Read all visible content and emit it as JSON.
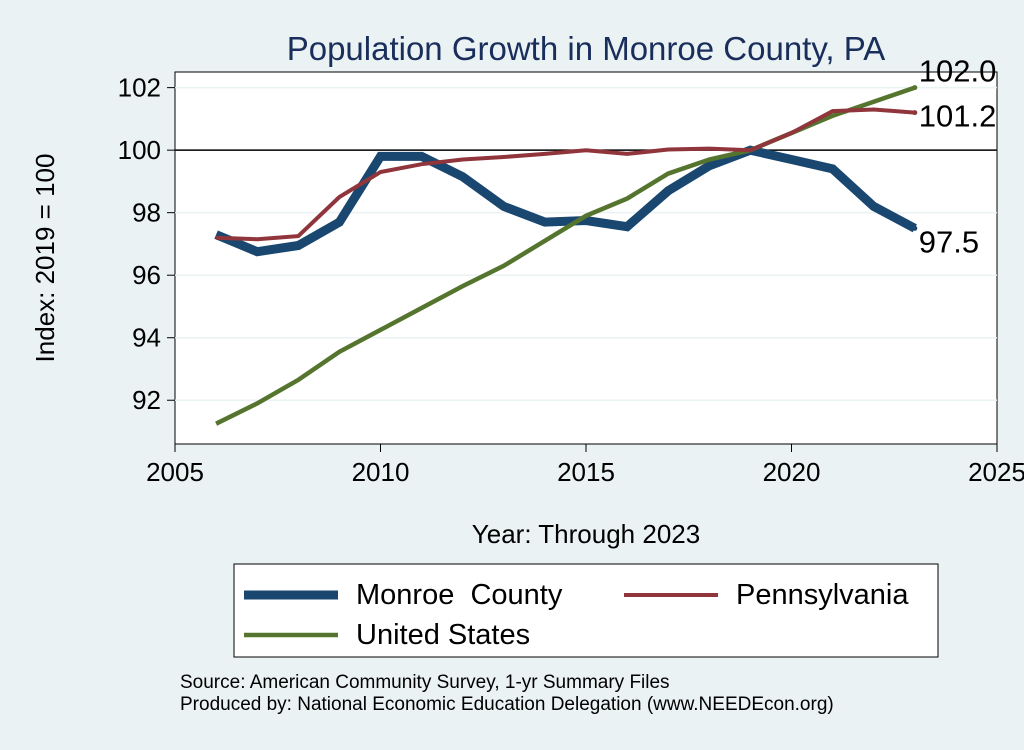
{
  "chart_data": {
    "type": "line",
    "title": "Population Growth in Monroe County, PA",
    "xlabel": "Year: Through 2023",
    "ylabel": "Index: 2019 = 100",
    "xlim": [
      2005,
      2025
    ],
    "ylim": [
      90.6,
      102.5
    ],
    "x_ticks": [
      2005,
      2010,
      2015,
      2020,
      2025
    ],
    "y_ticks": [
      92,
      94,
      96,
      98,
      100,
      102
    ],
    "reference_line": 100,
    "x": [
      2006,
      2007,
      2008,
      2009,
      2010,
      2011,
      2012,
      2013,
      2014,
      2015,
      2016,
      2017,
      2018,
      2019,
      2020,
      2021,
      2022,
      2023
    ],
    "series": [
      {
        "name": "Monroe  County",
        "color": "#1a476f",
        "values": [
          97.3,
          96.75,
          96.95,
          97.7,
          99.8,
          99.8,
          99.15,
          98.2,
          97.7,
          97.75,
          97.55,
          98.7,
          99.5,
          100.0,
          99.7,
          99.4,
          98.2,
          97.5
        ],
        "end_label": "97.5"
      },
      {
        "name": "Pennsylvania",
        "color": "#90353b",
        "values": [
          97.2,
          97.15,
          97.25,
          98.5,
          99.3,
          99.55,
          99.7,
          99.78,
          99.88,
          100.0,
          99.88,
          100.02,
          100.05,
          100.0,
          100.55,
          101.25,
          101.3,
          101.2
        ],
        "end_label": "101.2"
      },
      {
        "name": "United States",
        "color": "#55752f",
        "values": [
          91.25,
          91.9,
          92.65,
          93.55,
          94.25,
          94.95,
          95.65,
          96.3,
          97.1,
          97.9,
          98.45,
          99.25,
          99.7,
          100.0,
          100.55,
          101.1,
          101.55,
          102.0
        ],
        "end_label": "102.0"
      }
    ],
    "legend": [
      "Monroe  County",
      "Pennsylvania",
      "United States"
    ],
    "legend_position": "bottom",
    "notes": [
      "Source: American Community Survey, 1-yr Summary Files",
      "Produced by: National Economic Education Delegation (www.NEEDEcon.org)"
    ]
  }
}
